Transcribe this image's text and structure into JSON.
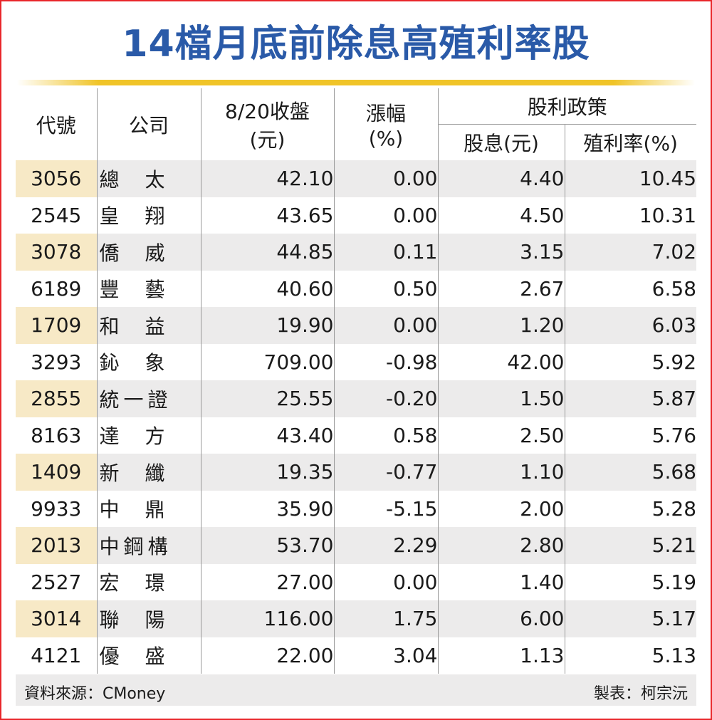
{
  "title": "14檔月底前除息高殖利率股",
  "header": {
    "code": "代號",
    "company": "公司",
    "close_line1": "8/20收盤",
    "close_line2": "(元)",
    "change_line1": "漲幅",
    "change_line2": "(%)",
    "policy": "股利政策",
    "dividend": "股息(元)",
    "yield": "殖利率(%)"
  },
  "chart_data": {
    "type": "table",
    "title": "14檔月底前除息高殖利率股",
    "columns": [
      "代號",
      "公司",
      "8/20收盤(元)",
      "漲幅(%)",
      "股息(元)",
      "殖利率(%)"
    ],
    "rows": [
      [
        "3056",
        "總太",
        "42.10",
        "0.00",
        "4.40",
        "10.45"
      ],
      [
        "2545",
        "皇翔",
        "43.65",
        "0.00",
        "4.50",
        "10.31"
      ],
      [
        "3078",
        "僑威",
        "44.85",
        "0.11",
        "3.15",
        "7.02"
      ],
      [
        "6189",
        "豐藝",
        "40.60",
        "0.50",
        "2.67",
        "6.58"
      ],
      [
        "1709",
        "和益",
        "19.90",
        "0.00",
        "1.20",
        "6.03"
      ],
      [
        "3293",
        "鈊象",
        "709.00",
        "-0.98",
        "42.00",
        "5.92"
      ],
      [
        "2855",
        "統一證",
        "25.55",
        "-0.20",
        "1.50",
        "5.87"
      ],
      [
        "8163",
        "達方",
        "43.40",
        "0.58",
        "2.50",
        "5.76"
      ],
      [
        "1409",
        "新纖",
        "19.35",
        "-0.77",
        "1.10",
        "5.68"
      ],
      [
        "9933",
        "中鼎",
        "35.90",
        "-5.15",
        "2.00",
        "5.28"
      ],
      [
        "2013",
        "中鋼構",
        "53.70",
        "2.29",
        "2.80",
        "5.21"
      ],
      [
        "2527",
        "宏璟",
        "27.00",
        "0.00",
        "1.40",
        "5.19"
      ],
      [
        "3014",
        "聯陽",
        "116.00",
        "1.75",
        "6.00",
        "5.17"
      ],
      [
        "4121",
        "優盛",
        "22.00",
        "3.04",
        "1.13",
        "5.13"
      ]
    ]
  },
  "footer": {
    "source": "資料來源：CMoney",
    "maker": "製表：柯宗沅"
  },
  "colors": {
    "title": "#2a5aa8",
    "border": "#e8262a",
    "gold_line": "#f0c428",
    "shade_row": "#ecebeb",
    "shade_code": "#f7e9c6"
  }
}
